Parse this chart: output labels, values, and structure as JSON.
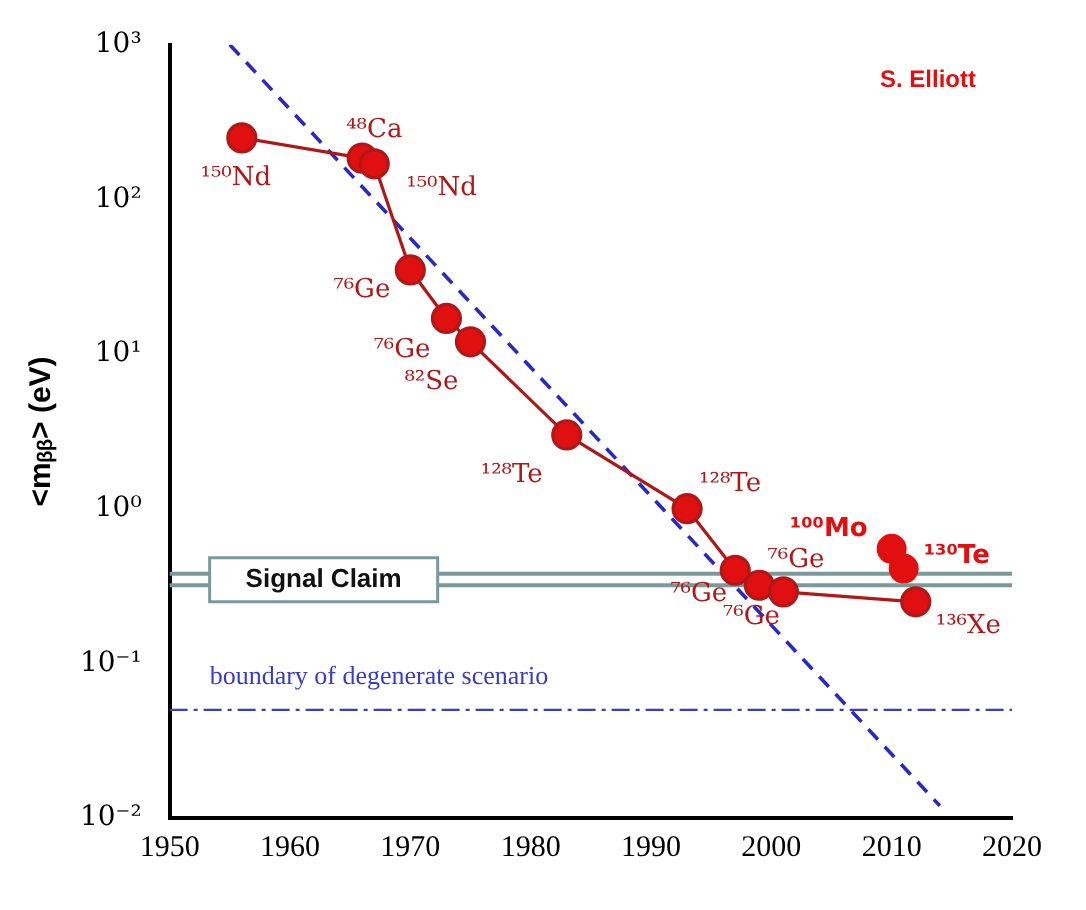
{
  "chart_data": {
    "type": "line",
    "ylabel": "<mᵦᵦ> (eV)",
    "xlim": [
      1950,
      2020
    ],
    "xticks": [
      1950,
      1960,
      1970,
      1980,
      1990,
      2000,
      2010,
      2020
    ],
    "ylim": [
      0.01,
      1000
    ],
    "yticks": [
      {
        "value": 0.01,
        "label": "10⁻²"
      },
      {
        "value": 0.1,
        "label": "10⁻¹"
      },
      {
        "value": 1,
        "label": "10⁰"
      },
      {
        "value": 10,
        "label": "10¹"
      },
      {
        "value": 100,
        "label": "10²"
      },
      {
        "value": 1000,
        "label": "10³"
      }
    ],
    "log": true,
    "grid": false,
    "legend": false,
    "marker": "circle",
    "series": [
      {
        "color": "#e01010",
        "x": [
          1956,
          1966,
          1967,
          1970,
          1973,
          1975,
          1983,
          1993,
          1997,
          1999,
          2001,
          2012
        ],
        "values": [
          250,
          185,
          170,
          35,
          17,
          12,
          3,
          1.0,
          0.4,
          0.32,
          0.29,
          0.25
        ]
      },
      {
        "type": "scatter",
        "color": "#e01010",
        "x": [
          2010,
          2011
        ],
        "values": [
          0.55,
          0.41
        ]
      },
      {
        "type": "line",
        "color": "#2828c8",
        "marker": "none",
        "line_style": "dashed",
        "x": [
          1955,
          2014
        ],
        "values": [
          1000,
          0.012
        ]
      }
    ],
    "ref_lines": [
      {
        "axis": "y",
        "value": 0.38,
        "label": "Signal Claim",
        "color": "#7a9a9a",
        "line_style": "solid"
      },
      {
        "axis": "y",
        "value": 0.32,
        "color": "#7a9a9a",
        "line_style": "solid"
      },
      {
        "axis": "y",
        "value": 0.05,
        "label": "boundary of degenerate scenario",
        "color": "#3a3ad0",
        "line_style": "dashed"
      }
    ],
    "annotations": [
      "S. Elliott",
      {
        "text": "¹⁵⁰Nd",
        "x": 1956,
        "y": 250
      },
      {
        "text": "⁴⁸Ca",
        "x": 1966,
        "y": 185
      },
      {
        "text": "¹⁵⁰Nd",
        "x": 1967,
        "y": 170
      },
      {
        "text": "⁷⁶Ge",
        "x": 1970,
        "y": 35
      },
      {
        "text": "⁷⁶Ge",
        "x": 1973,
        "y": 17
      },
      {
        "text": "⁸²Se",
        "x": 1975,
        "y": 12
      },
      {
        "text": "¹²⁸Te",
        "x": 1983,
        "y": 3
      },
      {
        "text": "¹²⁸Te",
        "x": 1993,
        "y": 1.0
      },
      {
        "text": "⁷⁶Ge",
        "x": 1997,
        "y": 0.4
      },
      {
        "text": "⁷⁶Ge",
        "x": 1999,
        "y": 0.32
      },
      {
        "text": "⁷⁶Ge",
        "x": 2001,
        "y": 0.29
      },
      {
        "text": "¹³⁶Xe",
        "x": 2012,
        "y": 0.25
      },
      {
        "text": "¹⁰⁰Mo",
        "x": 2010,
        "y": 0.55
      },
      {
        "text": "¹³⁰Te",
        "x": 2011,
        "y": 0.41
      }
    ]
  }
}
